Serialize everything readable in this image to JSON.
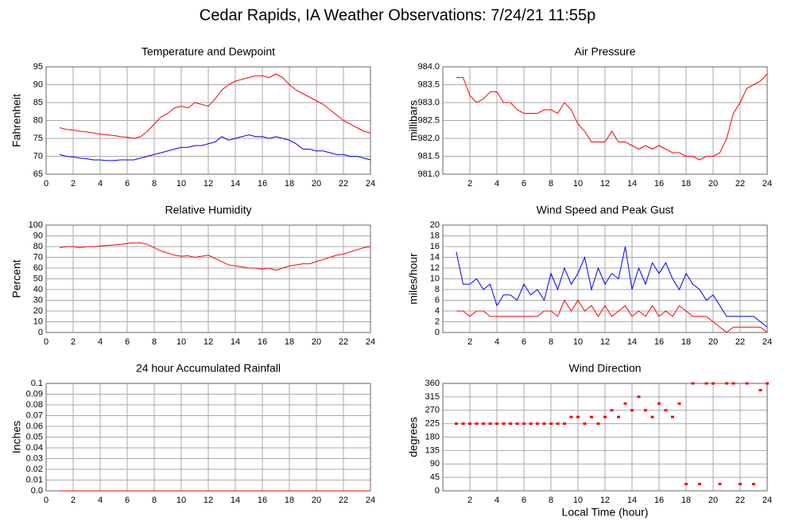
{
  "title": "Cedar Rapids, IA Weather Observations: 7/24/21 11:55p",
  "chart_data": [
    {
      "type": "line",
      "title": "Temperature and Dewpoint",
      "ylabel": "Fahrenheit",
      "x": [
        1,
        1.5,
        2,
        2.5,
        3,
        3.5,
        4,
        4.5,
        5,
        5.5,
        6,
        6.5,
        7,
        7.5,
        8,
        8.5,
        9,
        9.5,
        10,
        10.5,
        11,
        11.5,
        12,
        12.5,
        13,
        13.5,
        14,
        14.5,
        15,
        15.5,
        16,
        16.5,
        17,
        17.5,
        18,
        18.5,
        19,
        19.5,
        20,
        20.5,
        21,
        21.5,
        22,
        22.5,
        23,
        23.5,
        24
      ],
      "series": [
        {
          "color": "#ff0000",
          "values": [
            78,
            77.5,
            77.3,
            77,
            76.8,
            76.5,
            76.2,
            76,
            75.8,
            75.5,
            75.3,
            75,
            75.5,
            77,
            79,
            81,
            82,
            83.5,
            84,
            83.5,
            85,
            84.5,
            84,
            86,
            88.5,
            90,
            91,
            91.5,
            92,
            92.5,
            92.5,
            92,
            93,
            92,
            90,
            88.5,
            87.5,
            86.5,
            85.5,
            84.5,
            83,
            81.5,
            80,
            79,
            78,
            77,
            76.5
          ]
        },
        {
          "color": "#0000ff",
          "values": [
            70.5,
            70,
            69.8,
            69.5,
            69.3,
            69,
            69,
            68.8,
            68.8,
            69,
            69,
            69,
            69.5,
            70,
            70.5,
            71,
            71.5,
            72,
            72.5,
            72.5,
            73,
            73,
            73.5,
            74,
            75.5,
            74.5,
            75,
            75.5,
            76,
            75.5,
            75.5,
            75,
            75.5,
            75,
            74.5,
            73.5,
            72,
            72,
            71.5,
            71.5,
            71,
            70.5,
            70.5,
            70,
            70,
            69.5,
            69
          ]
        }
      ],
      "xlim": [
        0,
        24
      ],
      "xticks": [
        0,
        2,
        4,
        6,
        8,
        10,
        12,
        14,
        16,
        18,
        20,
        22,
        24
      ],
      "ylim": [
        65,
        95
      ],
      "yticks": [
        65,
        70,
        75,
        80,
        85,
        90,
        95
      ],
      "grid": true
    },
    {
      "type": "line",
      "title": "Air Pressure",
      "ylabel": "millibars",
      "x": [
        1,
        1.5,
        2,
        2.5,
        3,
        3.5,
        4,
        4.5,
        5,
        5.5,
        6,
        6.5,
        7,
        7.5,
        8,
        8.5,
        9,
        9.5,
        10,
        10.5,
        11,
        11.5,
        12,
        12.5,
        13,
        13.5,
        14,
        14.5,
        15,
        15.5,
        16,
        16.5,
        17,
        17.5,
        18,
        18.5,
        19,
        19.5,
        20,
        20.5,
        21,
        21.5,
        22,
        22.5,
        23,
        23.5,
        24
      ],
      "series": [
        {
          "color": "#ff0000",
          "values": [
            983.7,
            983.7,
            983.2,
            983.0,
            983.1,
            983.3,
            983.3,
            983.0,
            983.0,
            982.8,
            982.7,
            982.7,
            982.7,
            982.8,
            982.8,
            982.7,
            983.0,
            982.8,
            982.4,
            982.2,
            981.9,
            981.9,
            981.9,
            982.2,
            981.9,
            981.9,
            981.8,
            981.7,
            981.8,
            981.7,
            981.8,
            981.7,
            981.6,
            981.6,
            981.5,
            981.5,
            981.4,
            981.5,
            981.5,
            981.6,
            982.0,
            982.7,
            983.0,
            983.4,
            983.5,
            983.6,
            983.8
          ]
        }
      ],
      "xlim": [
        0,
        24
      ],
      "xticks": [
        2,
        4,
        6,
        8,
        10,
        12,
        14,
        16,
        18,
        20,
        22,
        24
      ],
      "ylim": [
        981,
        984
      ],
      "yticks": [
        {
          "value": 981,
          "label": "981.0"
        },
        {
          "value": 981.5,
          "label": "981.5"
        },
        {
          "value": 982,
          "label": "982.0"
        },
        {
          "value": 982.5,
          "label": "982.5"
        },
        {
          "value": 983,
          "label": "983.0"
        },
        {
          "value": 983.5,
          "label": "983.5"
        },
        {
          "value": 984,
          "label": "984.0"
        }
      ],
      "grid": true
    },
    {
      "type": "line",
      "title": "Relative Humidity",
      "ylabel": "Percent",
      "x": [
        1,
        1.5,
        2,
        2.5,
        3,
        3.5,
        4,
        4.5,
        5,
        5.5,
        6,
        6.5,
        7,
        7.5,
        8,
        8.5,
        9,
        9.5,
        10,
        10.5,
        11,
        11.5,
        12,
        12.5,
        13,
        13.5,
        14,
        14.5,
        15,
        15.5,
        16,
        16.5,
        17,
        17.5,
        18,
        18.5,
        19,
        19.5,
        20,
        20.5,
        21,
        21.5,
        22,
        22.5,
        23,
        23.5,
        24
      ],
      "series": [
        {
          "color": "#ff0000",
          "values": [
            79,
            80,
            80,
            79,
            80,
            80,
            80.5,
            81,
            81.5,
            82,
            83,
            83.5,
            83.5,
            82,
            79,
            76,
            74,
            72,
            71,
            71.5,
            70,
            71,
            72,
            69,
            66,
            63,
            62,
            61,
            60,
            60,
            59,
            60,
            58,
            60,
            62,
            63,
            64,
            64,
            66,
            68,
            70,
            72,
            73,
            75,
            77,
            79,
            80
          ]
        }
      ],
      "xlim": [
        0,
        24
      ],
      "xticks": [
        0,
        2,
        4,
        6,
        8,
        10,
        12,
        14,
        16,
        18,
        20,
        22,
        24
      ],
      "ylim": [
        0,
        100
      ],
      "yticks": [
        0,
        10,
        20,
        30,
        40,
        50,
        60,
        70,
        80,
        90,
        100
      ],
      "grid": true
    },
    {
      "type": "line",
      "title": "Wind Speed and Peak Gust",
      "ylabel": "miles/hour",
      "x": [
        1,
        1.5,
        2,
        2.5,
        3,
        3.5,
        4,
        4.5,
        5,
        5.5,
        6,
        6.5,
        7,
        7.5,
        8,
        8.5,
        9,
        9.5,
        10,
        10.5,
        11,
        11.5,
        12,
        12.5,
        13,
        13.5,
        14,
        14.5,
        15,
        15.5,
        16,
        16.5,
        17,
        17.5,
        18,
        18.5,
        19,
        19.5,
        20,
        20.5,
        21,
        21.5,
        22,
        22.5,
        23,
        23.5,
        24
      ],
      "series": [
        {
          "color": "#ff0000",
          "values": [
            4,
            4,
            3,
            4,
            4,
            3,
            3,
            3,
            3,
            3,
            3,
            3,
            3,
            4,
            4,
            3,
            6,
            4,
            6,
            4,
            5,
            3,
            5,
            3,
            4,
            5,
            3,
            4,
            3,
            5,
            3,
            4,
            3,
            5,
            4,
            3,
            3,
            3,
            2,
            1,
            0,
            1,
            1,
            1,
            1,
            1,
            0
          ]
        },
        {
          "color": "#0000ff",
          "values": [
            15,
            9,
            9,
            10,
            8,
            9,
            5,
            7,
            7,
            6,
            9,
            7,
            8,
            6,
            11,
            8,
            12,
            9,
            11,
            14,
            8,
            12,
            9,
            11,
            10,
            16,
            8,
            12,
            9,
            13,
            11,
            13,
            10,
            8,
            11,
            9,
            8,
            6,
            7,
            5,
            3,
            3,
            3,
            3,
            3,
            2,
            1
          ]
        }
      ],
      "xlim": [
        0,
        24
      ],
      "xticks": [
        2,
        4,
        6,
        8,
        10,
        12,
        14,
        16,
        18,
        20,
        22,
        24
      ],
      "ylim": [
        0,
        20
      ],
      "yticks": [
        0,
        2,
        4,
        6,
        8,
        10,
        12,
        14,
        16,
        18,
        20
      ],
      "grid": true
    },
    {
      "type": "line",
      "title": "24 hour Accumulated Rainfall",
      "ylabel": "Inches",
      "x": [
        1,
        24
      ],
      "series": [
        {
          "color": "#ff0000",
          "values": [
            0,
            0
          ]
        }
      ],
      "xlim": [
        0,
        24
      ],
      "xticks": [
        0,
        2,
        4,
        6,
        8,
        10,
        12,
        14,
        16,
        18,
        20,
        22,
        24
      ],
      "ylim": [
        0,
        0.1
      ],
      "yticks": [
        {
          "value": 0,
          "label": "0.0"
        },
        0.01,
        0.02,
        0.03,
        0.04,
        0.05,
        0.06,
        0.07,
        0.08,
        0.09,
        0.1
      ],
      "grid": true
    },
    {
      "type": "scatter",
      "title": "Wind Direction",
      "ylabel": "degrees",
      "xlabel": "Local Time (hour)",
      "x": [
        1,
        1.5,
        2,
        2.5,
        3,
        3.5,
        4,
        4.5,
        5,
        5.5,
        6,
        6.5,
        7,
        7.5,
        8,
        8.5,
        9,
        9.5,
        10,
        10.5,
        11,
        11.5,
        12,
        12.5,
        13,
        13.5,
        14,
        14.5,
        15,
        15.5,
        16,
        16.5,
        17,
        17.5,
        18,
        18.5,
        19,
        19.5,
        20,
        20.5,
        21,
        21.5,
        22,
        22.5,
        23,
        23.5,
        24
      ],
      "series": [
        {
          "color": "#ff0000",
          "values": [
            225,
            225,
            225,
            225,
            225,
            225,
            225,
            225,
            225,
            225,
            225,
            225,
            225,
            225,
            225,
            225,
            225,
            247.5,
            247.5,
            225,
            247.5,
            225,
            247.5,
            270,
            247.5,
            292.5,
            270,
            315,
            270,
            247.5,
            292.5,
            270,
            247.5,
            292.5,
            22.5,
            360,
            22.5,
            360,
            360,
            22.5,
            360,
            360,
            22.5,
            360,
            22.5,
            337.5,
            360
          ]
        }
      ],
      "xlim": [
        0,
        24
      ],
      "xticks": [
        2,
        4,
        6,
        8,
        10,
        12,
        14,
        16,
        18,
        20,
        22,
        24
      ],
      "ylim": [
        0,
        360
      ],
      "yticks": [
        0,
        45,
        90,
        135,
        180,
        225,
        270,
        315,
        360
      ],
      "grid": true
    }
  ]
}
